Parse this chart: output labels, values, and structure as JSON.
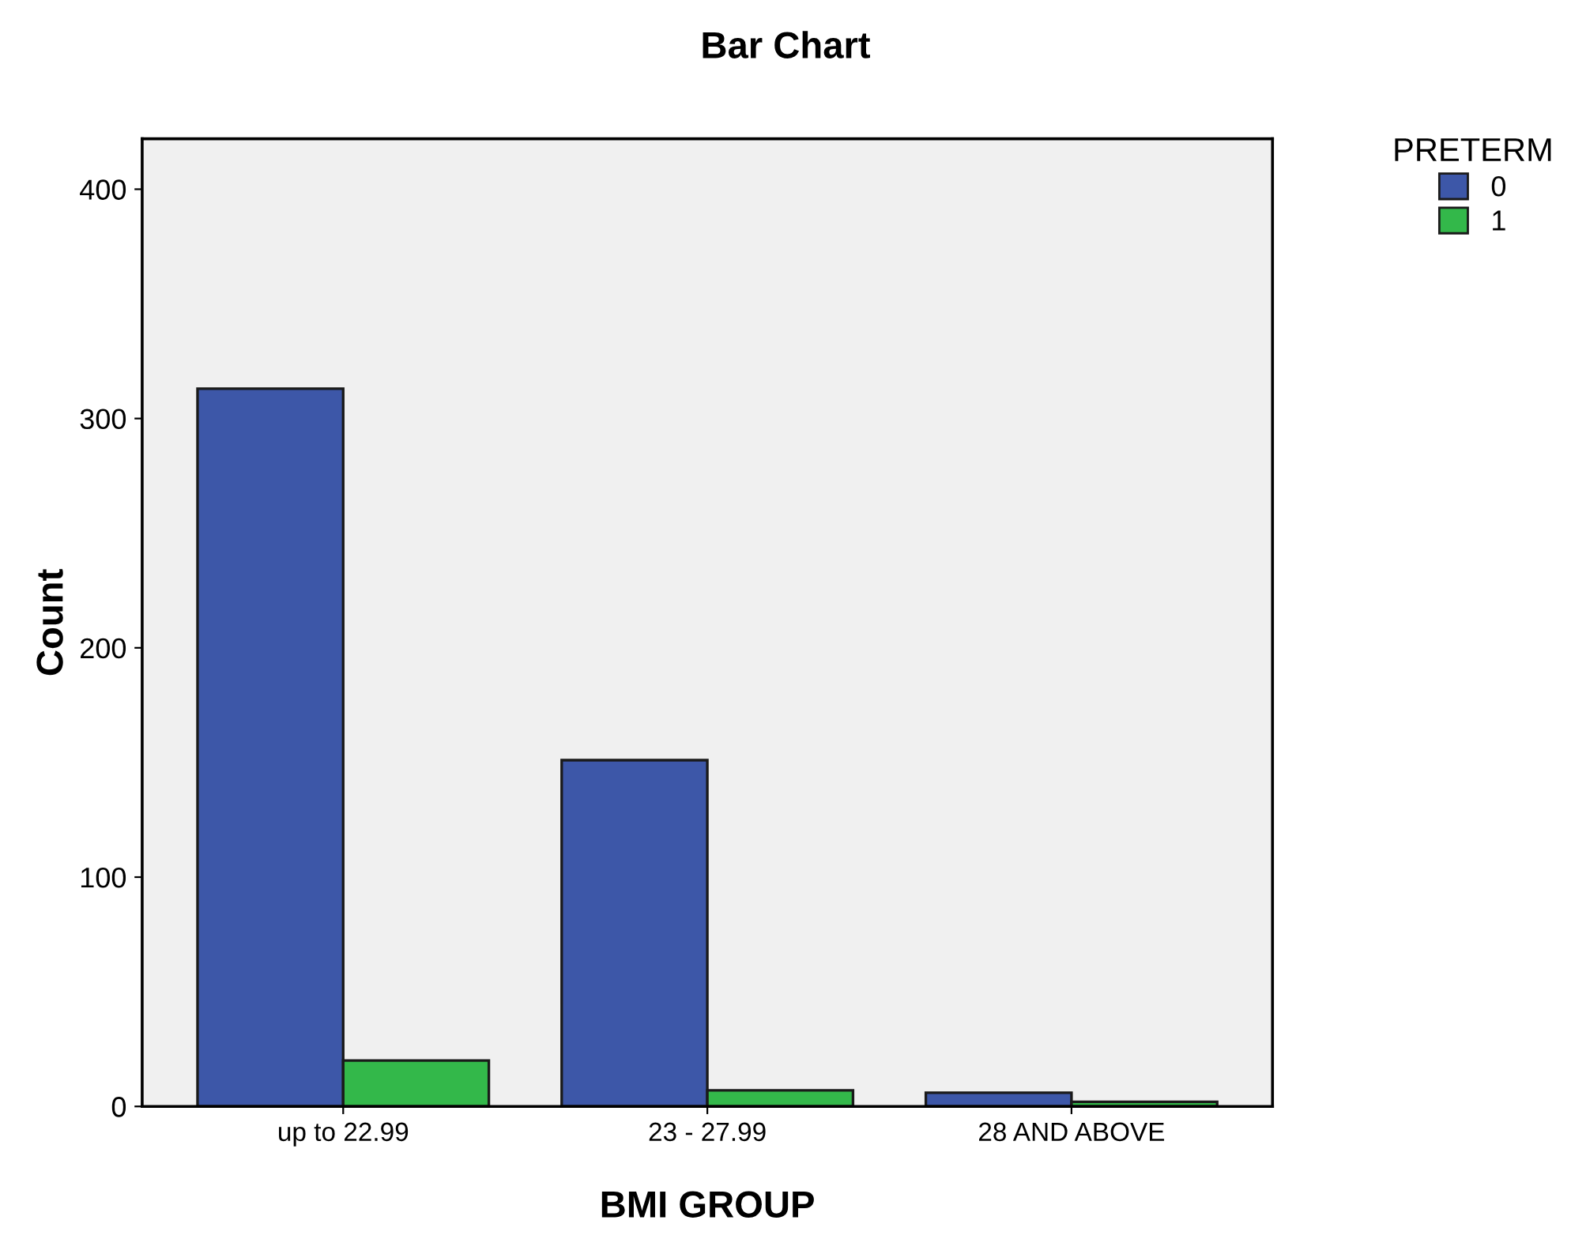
{
  "chart_data": {
    "type": "bar",
    "title": "Bar Chart",
    "xlabel": "BMI GROUP",
    "ylabel": "Count",
    "legend_title": "PRETERM",
    "legend": "top right",
    "categories": [
      "up to 22.99",
      "23 - 27.99",
      "28 AND ABOVE"
    ],
    "series": [
      {
        "name": "0",
        "color": "#3d57a8",
        "values": [
          313,
          151,
          6
        ]
      },
      {
        "name": "1",
        "color": "#33b84a",
        "values": [
          20,
          7,
          2
        ]
      }
    ],
    "ylim": [
      0,
      422
    ],
    "yticks": [
      0,
      100,
      200,
      300,
      400
    ],
    "grid": false
  }
}
